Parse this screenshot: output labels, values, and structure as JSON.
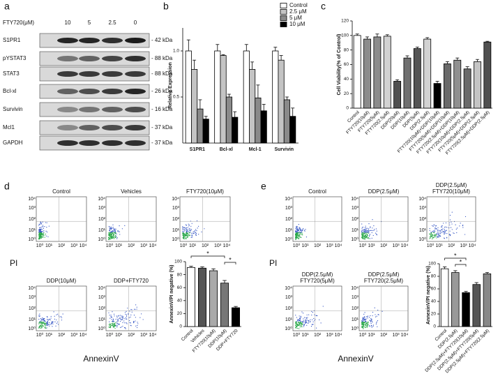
{
  "blot": {
    "label": "a",
    "treatment": "FTY720(μM)",
    "doses": [
      "10",
      "5",
      "2.5",
      "0"
    ],
    "rows": [
      {
        "protein": "S1PR1",
        "size": "- 42 kDa"
      },
      {
        "protein": "pYSTAT3",
        "size": "- 88 kDa"
      },
      {
        "protein": "STAT3",
        "size": "- 88 kDa"
      },
      {
        "protein": "Bcl-xl",
        "size": "- 26 kDa"
      },
      {
        "protein": "Survivin",
        "size": "- 16 kDa"
      },
      {
        "protein": "Mcl1",
        "size": "- 37 kDa"
      },
      {
        "protein": "GAPDH",
        "size": "- 37 kDa"
      }
    ]
  },
  "chart_data": [
    {
      "type": "bar",
      "panel_label": "b",
      "y_label": "Relative Expression",
      "categories": [
        "S1PR1",
        "Bcl-xl",
        "Mcl-1",
        "Survivin"
      ],
      "series": [
        {
          "name": "Control",
          "color": "#ffffff",
          "values": [
            1,
            1,
            1,
            1
          ],
          "errors": [
            0.12,
            0.07,
            0.07,
            0.04
          ]
        },
        {
          "name": "2.5 μM",
          "color": "#c4c4c4",
          "values": [
            0.8,
            0.95,
            0.8,
            0.9
          ],
          "errors": [
            0.1,
            0.01,
            0.08,
            0.05
          ]
        },
        {
          "name": "5 μM",
          "color": "#8a8a8a",
          "values": [
            0.37,
            0.5,
            0.49,
            0.47
          ],
          "errors": [
            0.1,
            0.03,
            0.14,
            0.03
          ]
        },
        {
          "name": "10 μM",
          "color": "#000000",
          "values": [
            0.26,
            0.28,
            0.35,
            0.29
          ],
          "errors": [
            0.03,
            0.06,
            0.07,
            0.09
          ]
        }
      ],
      "ylim": [
        0,
        1.25
      ],
      "yticks": [
        0.5,
        {
          "value": 1,
          "label": "1.0"
        }
      ]
    },
    {
      "type": "bar",
      "panel_label": "c",
      "y_label": "Cell Viability(% of Control)",
      "categories": [
        "Control",
        "FTY720(10μM)",
        "FTY720(5μM)",
        "FTY720(2.5μM)",
        "DDP(20μM)",
        "DDP(10μM)",
        "DDP(5μM)",
        "DDP(2.5μM)",
        "FTY720(10μM)+DDP(10μM)",
        "FTY720(5μM)+DDP(10μM)",
        "FTY720(2.5μM)+DDP(10μM)",
        "FTY720(10μM)+DDP(2.5μM)",
        "FTY720(5μM)+DDP(2.5μM)",
        "FTY720(2.5μM)+DDP(2.5μM)"
      ],
      "values": [
        100,
        95,
        98,
        99,
        37,
        69,
        82,
        95,
        34,
        61,
        66,
        54,
        64,
        91
      ],
      "errors": [
        2,
        3,
        4,
        2,
        2,
        3,
        2,
        2,
        3,
        3,
        3,
        3,
        3,
        1
      ],
      "colors": [
        "#ffffff",
        "#8c8c8c",
        "#8c8c8c",
        "#d2d2d2",
        "#505050",
        "#707070",
        "#555555",
        "#d2d2d2",
        "#000000",
        "#6a6a6a",
        "#909090",
        "#6a6a6a",
        "#c4c4c4",
        "#505050"
      ],
      "ylim": [
        0,
        120
      ],
      "yticks": [
        0,
        20,
        40,
        60,
        80,
        100,
        120
      ]
    },
    {
      "type": "bar",
      "y_label": "AnnexinV/PI negative (%)",
      "categories": [
        "Control",
        "Vehicles",
        "FTY720(10μM)",
        "DDP(10μM)",
        "DDP+FTY720"
      ],
      "values": [
        91,
        90,
        86,
        67,
        29
      ],
      "errors": [
        2,
        2,
        3,
        4,
        2
      ],
      "colors": [
        "#ffffff",
        "#555555",
        "#aaaaaa",
        "#777777",
        "#000000"
      ],
      "ylim": [
        0,
        100
      ],
      "yticks": [
        0,
        20,
        40,
        60,
        80,
        100
      ],
      "annotations": [
        "*",
        "*"
      ]
    },
    {
      "type": "bar",
      "y_label": "AnnexinV/PI negative (%)",
      "categories": [
        "Control",
        "DDP(2.5μM)",
        "DDP(2.5μM)+FTY720(10μM)",
        "DDP(2.5μM)+FTY720(5μM)",
        "DDP(2.5μM)+FTY720(2.5μM)"
      ],
      "values": [
        92,
        86,
        54,
        67,
        84
      ],
      "errors": [
        3,
        3,
        2,
        3,
        2
      ],
      "colors": [
        "#ffffff",
        "#999999",
        "#000000",
        "#555555",
        "#888888"
      ],
      "ylim": [
        0,
        100
      ],
      "yticks": [
        0,
        20,
        40,
        60,
        80,
        100
      ],
      "annotations": [
        "*",
        "*"
      ]
    }
  ],
  "flow_ticks": [
    "10⁰",
    "10¹",
    "10²",
    "10³",
    "10⁴"
  ],
  "flow_panels": [
    {
      "label": "d",
      "y_label": "PI",
      "x_label": "AnnexinV",
      "plots": [
        [
          "Control"
        ],
        [
          "Vehicles"
        ],
        [
          "FTY720(10μM)"
        ],
        [
          "DDP(10μM)"
        ],
        [
          "DDP+FTY720"
        ]
      ]
    },
    {
      "label": "e",
      "y_label": "PI",
      "x_label": "AnnexinV",
      "plots": [
        [
          "Control"
        ],
        [
          "DDP(2.5μM)"
        ],
        [
          "DDP(2.5μM)",
          "FTY720(10μM)"
        ],
        [
          "DDP(2.5μM)",
          "FTY720(5μM)"
        ],
        [
          "DDP(2.5μM)",
          "FTY720(2.5μM)"
        ]
      ]
    }
  ]
}
